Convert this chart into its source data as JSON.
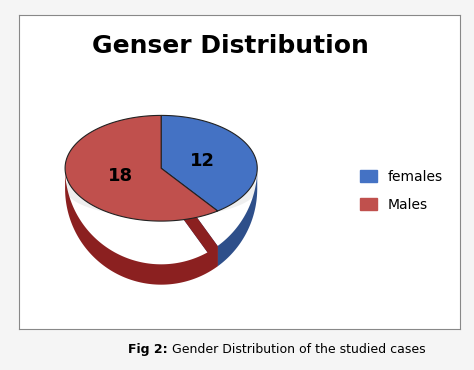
{
  "title": "Genser Distribution",
  "values": [
    12,
    18
  ],
  "labels": [
    "females",
    "Males"
  ],
  "colors_top": [
    "#4472C4",
    "#C0504D"
  ],
  "colors_side": [
    "#2E4F8A",
    "#8B2020"
  ],
  "startangle": 90,
  "title_fontsize": 18,
  "title_fontweight": "bold",
  "legend_labels": [
    "females",
    "Males"
  ],
  "caption_bold": "Fig 2:",
  "caption_normal": " Gender Distribution of the studied cases",
  "background_color": "#ffffff",
  "outer_background": "#f5f5f5",
  "label_fontsize": 13,
  "label_values": [
    "12",
    "18"
  ]
}
